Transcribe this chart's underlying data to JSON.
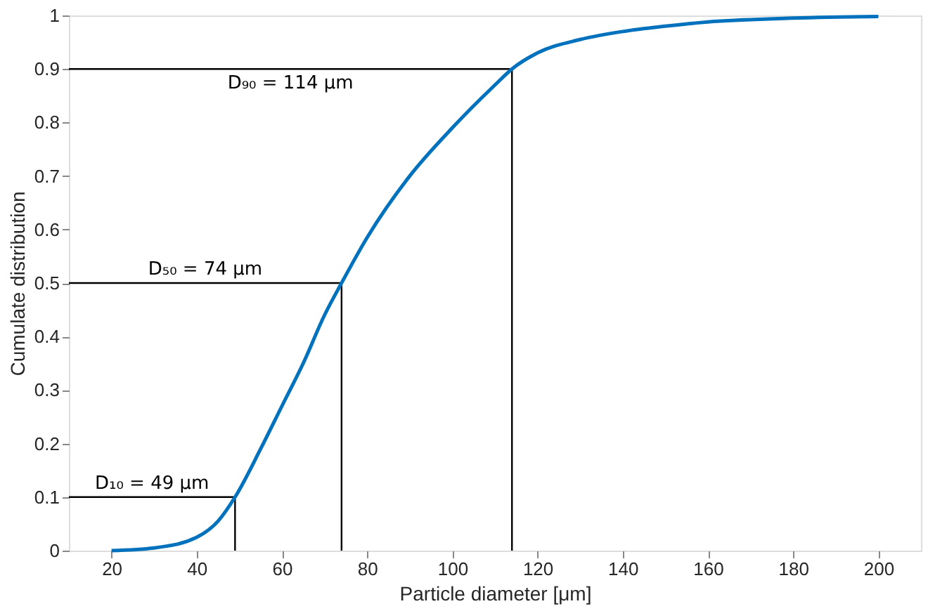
{
  "chart_data": {
    "type": "line",
    "xlabel": "Particle diameter [μm]",
    "ylabel": "Cumulate distribution",
    "xlim": [
      10,
      210
    ],
    "xticks": [
      20,
      40,
      60,
      80,
      100,
      120,
      140,
      160,
      180,
      200
    ],
    "ylim": [
      0,
      1
    ],
    "yticks": [
      {
        "value": 0,
        "label": "0"
      },
      0.1,
      0.2,
      0.3,
      0.4,
      0.5,
      0.6,
      0.7,
      0.8,
      0.9,
      {
        "value": 1,
        "label": "1"
      }
    ],
    "grid": false,
    "marker": "none",
    "line_style": "solid",
    "series": [
      {
        "color": "#0072bd",
        "x": [
          20,
          30,
          40,
          45,
          49,
          55,
          60,
          65,
          70,
          74,
          80,
          90,
          100,
          110,
          114,
          120,
          130,
          140,
          150,
          160,
          180,
          200
        ],
        "values": [
          0,
          0.005,
          0.025,
          0.055,
          0.1,
          0.19,
          0.27,
          0.35,
          0.44,
          0.5,
          0.585,
          0.7,
          0.79,
          0.87,
          0.9,
          0.93,
          0.955,
          0.97,
          0.98,
          0.988,
          0.995,
          0.998
        ]
      },
      {
        "color": "#000000",
        "x": [
          10,
          49,
          49
        ],
        "values": [
          0.1,
          0.1,
          0
        ]
      },
      {
        "color": "#000000",
        "x": [
          10,
          74,
          74
        ],
        "values": [
          0.5,
          0.5,
          0
        ]
      },
      {
        "color": "#000000",
        "x": [
          10,
          114,
          114
        ],
        "values": [
          0.9,
          0.9,
          0
        ]
      }
    ],
    "annotations": [
      "D₁₀ = 49 µm",
      "D₅₀ = 74 µm",
      "D₉₀ = 114 µm"
    ]
  }
}
